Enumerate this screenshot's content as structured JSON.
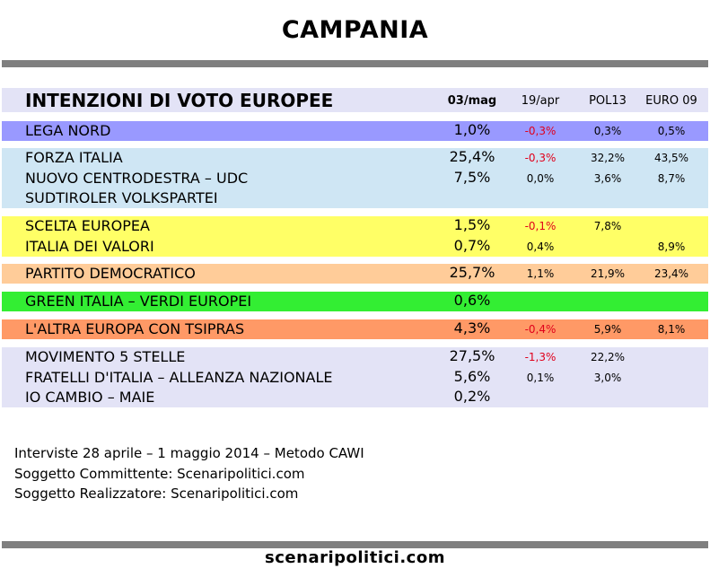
{
  "title": "CAMPANIA",
  "colors": {
    "rule": "#7f7f7f",
    "header_bg": "#e3e3f6",
    "negative": "#e0001b"
  },
  "chart_data": {
    "type": "table",
    "title": "INTENZIONI DI VOTO EUROPEE",
    "columns": [
      "03/mag",
      "19/apr",
      "POL13",
      "EURO 09"
    ],
    "groups": [
      {
        "color": "#9999ff",
        "rows": [
          {
            "party": "LEGA NORD",
            "values": [
              "1,0%",
              "-0,3%",
              "0,3%",
              "0,5%"
            ]
          }
        ]
      },
      {
        "color": "#cfe6f4",
        "rows": [
          {
            "party": "FORZA ITALIA",
            "values": [
              "25,4%",
              "-0,3%",
              "32,2%",
              "43,5%"
            ]
          },
          {
            "party": "NUOVO CENTRODESTRA – UDC",
            "values": [
              "7,5%",
              "0,0%",
              "3,6%",
              "8,7%"
            ]
          },
          {
            "party": "SUDTIROLER VOLKSPARTEI",
            "values": [
              "",
              "",
              "",
              ""
            ]
          }
        ]
      },
      {
        "color": "#ffff66",
        "rows": [
          {
            "party": "SCELTA EUROPEA",
            "values": [
              "1,5%",
              "-0,1%",
              "7,8%",
              ""
            ]
          },
          {
            "party": "ITALIA DEI VALORI",
            "values": [
              "0,7%",
              "0,4%",
              "",
              "8,9%"
            ]
          }
        ]
      },
      {
        "color": "#ffcc99",
        "rows": [
          {
            "party": "PARTITO DEMOCRATICO",
            "values": [
              "25,7%",
              "1,1%",
              "21,9%",
              "23,4%"
            ]
          }
        ]
      },
      {
        "color": "#33ee33",
        "rows": [
          {
            "party": "GREEN ITALIA – VERDI EUROPEI",
            "values": [
              "0,6%",
              "",
              "",
              ""
            ]
          }
        ]
      },
      {
        "color": "#ff9966",
        "rows": [
          {
            "party": "L'ALTRA EUROPA CON TSIPRAS",
            "values": [
              "4,3%",
              "-0,4%",
              "5,9%",
              "8,1%"
            ]
          }
        ]
      },
      {
        "color": "#e3e3f6",
        "rows": [
          {
            "party": "MOVIMENTO 5 STELLE",
            "values": [
              "27,5%",
              "-1,3%",
              "22,2%",
              ""
            ]
          },
          {
            "party": "FRATELLI D'ITALIA – ALLEANZA NAZIONALE",
            "values": [
              "5,6%",
              "0,1%",
              "3,0%",
              ""
            ]
          },
          {
            "party": "IO CAMBIO – MAIE",
            "values": [
              "0,2%",
              "",
              "",
              ""
            ]
          }
        ]
      }
    ]
  },
  "notes": [
    "Interviste 28 aprile – 1 maggio 2014 – Metodo CAWI",
    "Soggetto Committente: Scenaripolitici.com",
    "Soggetto Realizzatore: Scenaripolitici.com"
  ],
  "footer": "scenaripolitici.com"
}
